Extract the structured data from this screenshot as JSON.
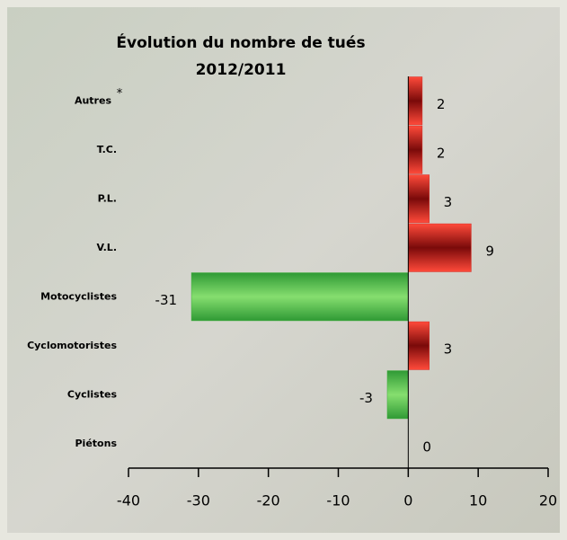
{
  "chart_data": {
    "type": "hbar",
    "title": [
      "Évolution du nombre de tués",
      "2012/2011"
    ],
    "categories": [
      "Autres",
      "T.C.",
      "P.L.",
      "V.L.",
      "Motocyclistes",
      "Cyclomotoristes",
      "Cyclistes",
      "Piétons"
    ],
    "annotation": "*",
    "values": [
      2,
      2,
      3,
      9,
      -31,
      3,
      -3,
      0
    ],
    "positive_color": "#d42a22",
    "negative_color": "#3fae3c",
    "xlim": [
      -40,
      20
    ],
    "xticks": [
      -40,
      -30,
      -20,
      -10,
      0,
      10,
      20
    ]
  }
}
